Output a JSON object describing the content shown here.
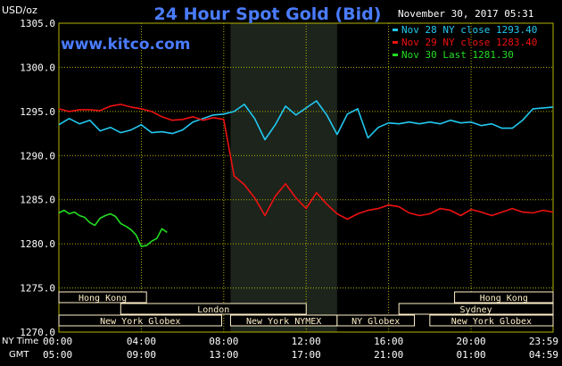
{
  "header": {
    "title": "24 Hour Spot Gold (Bid)",
    "unit": "USD/oz",
    "timestamp": "November 30, 2017 05:31",
    "site": "www.kitco.com"
  },
  "legend": [
    {
      "label": "Nov 28 NY close 1293.40",
      "color": "#22c8f0"
    },
    {
      "label": "Nov 29 NY close 1283.40",
      "color": "#ee1111"
    },
    {
      "label": "Nov 30 Last 1281.30",
      "color": "#22dd22"
    }
  ],
  "time_rows": {
    "ny_label": "NY Time",
    "gmt_label": "GMT"
  },
  "sessions": [
    {
      "name": "Hong Kong",
      "start": 0,
      "end": 4.25,
      "row": 0
    },
    {
      "name": "Hong Kong",
      "start": 19.2,
      "end": 23.98,
      "row": 0
    },
    {
      "name": "London",
      "start": 3,
      "end": 12,
      "row": 1
    },
    {
      "name": "Sydney",
      "start": 16.5,
      "end": 23.98,
      "row": 1
    },
    {
      "name": "New York Globex",
      "start": 0,
      "end": 7.9,
      "row": 2
    },
    {
      "name": "New York NYMEX",
      "start": 8.33,
      "end": 13.5,
      "row": 2
    },
    {
      "name": "NY Globex",
      "start": 13.5,
      "end": 17.25,
      "row": 2
    },
    {
      "name": "New York Globex",
      "start": 18.0,
      "end": 23.98,
      "row": 2
    }
  ],
  "colors": {
    "blue": "#22c8f0",
    "red": "#ee1111",
    "green": "#22dd22",
    "session_bg": "#fff0c8",
    "title": "#4a7cff",
    "shade": "#1c241c"
  },
  "chart_data": {
    "type": "line",
    "title": "24 Hour Spot Gold (Bid)",
    "ylabel": "USD/oz",
    "ylim": [
      1270,
      1305
    ],
    "y_ticks": [
      "1305.0",
      "1300.0",
      "1295.0",
      "1290.0",
      "1285.0",
      "1280.0",
      "1275.0",
      "1270.0"
    ],
    "xlim": [
      0,
      23.98
    ],
    "x_ticks_ny": [
      "00:00",
      "04:00",
      "08:00",
      "12:00",
      "16:00",
      "20:00",
      "23:59"
    ],
    "x_ticks_gmt": [
      "05:00",
      "09:00",
      "13:00",
      "17:00",
      "21:00",
      "01:00",
      "04:59"
    ],
    "x_unit": "hours (NY time)",
    "shaded_range": [
      8.33,
      13.5
    ],
    "grid": true,
    "series": [
      {
        "name": "Nov 28 NY close 1293.40",
        "color": "#22c8f0",
        "x": [
          0,
          0.5,
          1,
          1.5,
          2,
          2.5,
          3,
          3.5,
          4,
          4.5,
          5,
          5.5,
          6,
          6.5,
          7,
          7.5,
          8,
          8.5,
          9,
          9.5,
          10,
          10.5,
          11,
          11.5,
          12,
          12.5,
          13,
          13.5,
          14,
          14.5,
          15,
          15.5,
          16,
          16.5,
          17,
          17.5,
          18,
          18.5,
          19,
          19.5,
          20,
          20.5,
          21,
          21.5,
          22,
          22.5,
          23,
          23.5,
          23.98
        ],
        "y": [
          1293.5,
          1294.2,
          1293.6,
          1294.0,
          1292.8,
          1293.2,
          1292.6,
          1292.9,
          1293.5,
          1292.6,
          1292.7,
          1292.5,
          1292.9,
          1293.8,
          1294.2,
          1294.6,
          1294.7,
          1295.0,
          1295.8,
          1294.2,
          1291.8,
          1293.5,
          1295.6,
          1294.6,
          1295.4,
          1296.2,
          1294.6,
          1292.4,
          1294.7,
          1295.3,
          1292.0,
          1293.2,
          1293.7,
          1293.6,
          1293.8,
          1293.6,
          1293.8,
          1293.6,
          1294.0,
          1293.7,
          1293.8,
          1293.4,
          1293.6,
          1293.1,
          1293.1,
          1294.0,
          1295.3,
          1295.4,
          1295.5
        ]
      },
      {
        "name": "Nov 29 NY close 1283.40",
        "color": "#ee1111",
        "x": [
          0,
          0.5,
          1,
          1.5,
          2,
          2.5,
          3,
          3.5,
          4,
          4.5,
          5,
          5.5,
          6,
          6.5,
          7,
          7.5,
          8,
          8.5,
          9,
          9.5,
          10,
          10.5,
          11,
          11.5,
          12,
          12.5,
          13,
          13.5,
          14,
          14.5,
          15,
          15.5,
          16,
          16.5,
          17,
          17.5,
          18,
          18.5,
          19,
          19.5,
          20,
          20.5,
          21,
          21.5,
          22,
          22.5,
          23,
          23.5,
          23.98
        ],
        "y": [
          1295.3,
          1295.0,
          1295.2,
          1295.2,
          1295.1,
          1295.6,
          1295.8,
          1295.5,
          1295.3,
          1295.0,
          1294.4,
          1294.0,
          1294.1,
          1294.4,
          1294.0,
          1294.3,
          1294.1,
          1287.7,
          1286.7,
          1285.2,
          1283.2,
          1285.4,
          1286.8,
          1285.2,
          1284.0,
          1285.8,
          1284.5,
          1283.4,
          1282.8,
          1283.4,
          1283.8,
          1284.0,
          1284.4,
          1284.2,
          1283.5,
          1283.2,
          1283.4,
          1284.0,
          1283.8,
          1283.2,
          1283.9,
          1283.6,
          1283.2,
          1283.6,
          1284.0,
          1283.6,
          1283.5,
          1283.8,
          1283.6
        ]
      },
      {
        "name": "Nov 30 Last 1281.30",
        "color": "#22dd22",
        "x": [
          0,
          0.25,
          0.5,
          0.75,
          1,
          1.25,
          1.5,
          1.75,
          2,
          2.25,
          2.5,
          2.75,
          3,
          3.25,
          3.5,
          3.75,
          4,
          4.25,
          4.5,
          4.75,
          5,
          5.25
        ],
        "y": [
          1283.5,
          1283.8,
          1283.4,
          1283.6,
          1283.2,
          1283.0,
          1282.4,
          1282.1,
          1282.9,
          1283.2,
          1283.4,
          1283.1,
          1282.3,
          1282.0,
          1281.6,
          1281.0,
          1279.7,
          1279.8,
          1280.3,
          1280.6,
          1281.7,
          1281.3
        ]
      }
    ]
  }
}
